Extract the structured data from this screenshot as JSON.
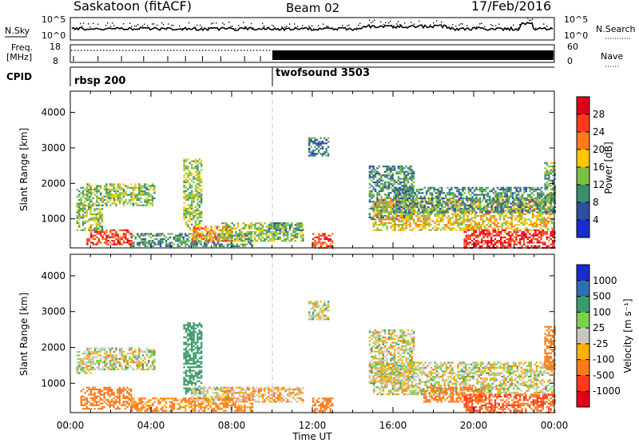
{
  "header": {
    "station": "Saskatoon (fitACF)",
    "beam": "Beam 02",
    "date": "17/Feb/2016"
  },
  "noise_panel": {
    "left_label": "N.Sky",
    "right_label": "N.Search",
    "left_ticks": [
      "10^5",
      "10^0"
    ],
    "right_ticks": [
      "10^5",
      "10^0"
    ]
  },
  "freq_panel": {
    "left_label_1": "Freq.",
    "left_label_2": "[MHz]",
    "left_ticks": [
      "18",
      "8"
    ],
    "right_label": "Nave",
    "right_ticks": [
      "60",
      "0"
    ]
  },
  "cpid_panel": {
    "label": "CPID",
    "modes": [
      {
        "name": "rbsp 200",
        "start_hour": 0
      },
      {
        "name": "twofsound 3503",
        "start_hour": 10
      }
    ]
  },
  "axes": {
    "ylabel": "Slant Range [km]",
    "xlabel": "Time UT",
    "y_ticks": [
      "4000",
      "3000",
      "2000",
      "1000"
    ],
    "x_ticks": [
      "00:00",
      "04:00",
      "08:00",
      "12:00",
      "16:00",
      "20:00",
      "00:00"
    ]
  },
  "power_colorbar": {
    "label": "Power [dB]",
    "ticks": [
      "28",
      "24",
      "20",
      "16",
      "12",
      "8",
      "4"
    ],
    "colors": [
      "#e0001a",
      "#ff3a1a",
      "#ff7a1a",
      "#ffc800",
      "#7ac143",
      "#3c8d6e",
      "#2d4fa0",
      "#1a2cd0"
    ]
  },
  "velocity_colorbar": {
    "label": "Velocity [m s⁻¹]",
    "ticks": [
      "1000",
      "500",
      "100",
      "25",
      "-25",
      "-100",
      "-500",
      "-1000"
    ],
    "colors": [
      "#1a2cd0",
      "#2d6fb0",
      "#3c9b6e",
      "#7ad14a",
      "#c8c8c0",
      "#ffb000",
      "#ff7a1a",
      "#ff3a1a",
      "#e0001a"
    ]
  },
  "chart_data": [
    {
      "type": "heatmap",
      "name": "Power",
      "xlabel": "Time UT",
      "ylabel": "Slant Range [km]",
      "xlim": [
        0,
        24
      ],
      "ylim": [
        180,
        4600
      ],
      "zlabel": "Power [dB]",
      "zlim": [
        0,
        30
      ],
      "regions": [
        {
          "t0": 0.3,
          "t1": 1.0,
          "r0": 1300,
          "r1": 1900,
          "p": 10
        },
        {
          "t0": 0.8,
          "t1": 4.2,
          "r0": 1400,
          "r1": 2000,
          "p": 12
        },
        {
          "t0": 0.8,
          "t1": 3.0,
          "r0": 300,
          "r1": 700,
          "p": 24
        },
        {
          "t0": 0.3,
          "t1": 1.6,
          "r0": 700,
          "r1": 1400,
          "p": 12
        },
        {
          "t0": 3.0,
          "t1": 9.0,
          "r0": 250,
          "r1": 600,
          "p": 8
        },
        {
          "t0": 5.6,
          "t1": 6.5,
          "r0": 700,
          "r1": 2700,
          "p": 12
        },
        {
          "t0": 6.0,
          "t1": 8.0,
          "r0": 400,
          "r1": 800,
          "p": 20
        },
        {
          "t0": 7.5,
          "t1": 11.5,
          "r0": 400,
          "r1": 900,
          "p": 12
        },
        {
          "t0": 9.8,
          "t1": 11.5,
          "r0": 700,
          "r1": 900,
          "p": 8
        },
        {
          "t0": 12.0,
          "t1": 13.0,
          "r0": 200,
          "r1": 600,
          "p": 24
        },
        {
          "t0": 11.8,
          "t1": 12.8,
          "r0": 2800,
          "r1": 3300,
          "p": 6
        },
        {
          "t0": 14.8,
          "t1": 17.0,
          "r0": 1000,
          "r1": 2500,
          "p": 8
        },
        {
          "t0": 15.0,
          "t1": 24.0,
          "r0": 700,
          "r1": 1600,
          "p": 16
        },
        {
          "t0": 16.0,
          "t1": 24.0,
          "r0": 1200,
          "r1": 1900,
          "p": 8
        },
        {
          "t0": 19.5,
          "t1": 24.0,
          "r0": 200,
          "r1": 700,
          "p": 26
        },
        {
          "t0": 23.5,
          "t1": 24.0,
          "r0": 1400,
          "r1": 2600,
          "p": 10
        }
      ]
    },
    {
      "type": "heatmap",
      "name": "Velocity",
      "xlabel": "Time UT",
      "ylabel": "Slant Range [km]",
      "xlim": [
        0,
        24
      ],
      "ylim": [
        180,
        4600
      ],
      "zlabel": "Velocity [m s⁻¹]",
      "zlim": [
        -1000,
        1000
      ],
      "regions": [
        {
          "t0": 0.3,
          "t1": 1.0,
          "r0": 1300,
          "r1": 1900,
          "v": 0
        },
        {
          "t0": 0.8,
          "t1": 4.2,
          "r0": 1400,
          "r1": 2000,
          "v": 0
        },
        {
          "t0": 0.5,
          "t1": 3.0,
          "r0": 300,
          "r1": 900,
          "v": -150
        },
        {
          "t0": 3.0,
          "t1": 9.0,
          "r0": 250,
          "r1": 600,
          "v": -100
        },
        {
          "t0": 5.6,
          "t1": 6.5,
          "r0": 700,
          "r1": 2700,
          "v": 200
        },
        {
          "t0": 6.0,
          "t1": 8.0,
          "r0": 500,
          "r1": 900,
          "v": 0
        },
        {
          "t0": 7.5,
          "t1": 11.5,
          "r0": 500,
          "r1": 900,
          "v": -50
        },
        {
          "t0": 12.0,
          "t1": 13.0,
          "r0": 200,
          "r1": 600,
          "v": -150
        },
        {
          "t0": 11.8,
          "t1": 12.8,
          "r0": 2800,
          "r1": 3300,
          "v": 0
        },
        {
          "t0": 14.8,
          "t1": 17.0,
          "r0": 1000,
          "r1": 2500,
          "v": 0
        },
        {
          "t0": 15.0,
          "t1": 24.0,
          "r0": 700,
          "r1": 1600,
          "v": 0
        },
        {
          "t0": 17.5,
          "t1": 20.5,
          "r0": 500,
          "r1": 900,
          "v": -200
        },
        {
          "t0": 19.5,
          "t1": 24.0,
          "r0": 200,
          "r1": 700,
          "v": -300
        },
        {
          "t0": 23.5,
          "t1": 24.0,
          "r0": 1400,
          "r1": 2600,
          "v": -200
        }
      ]
    }
  ]
}
